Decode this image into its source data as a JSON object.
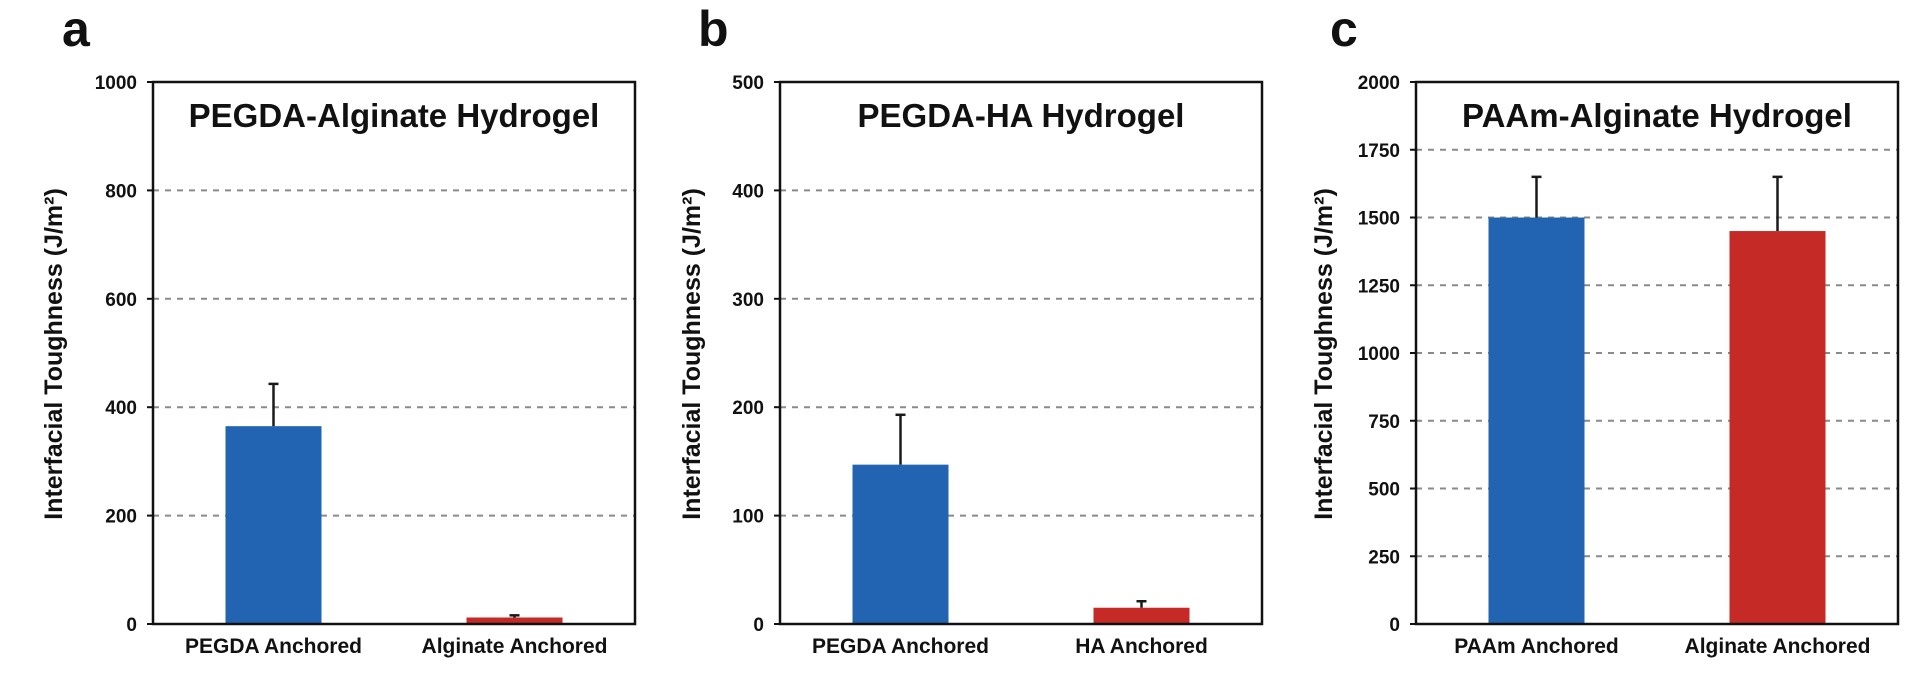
{
  "panels": [
    {
      "letter": "a"
    },
    {
      "letter": "b"
    },
    {
      "letter": "c"
    }
  ],
  "chart_data": [
    {
      "type": "bar",
      "title": "PEGDA-Alginate Hydrogel",
      "xlabel": "",
      "ylabel": "Interfacial Toughness (J/m²)",
      "categories": [
        "PEGDA Anchored",
        "Alginate Anchored"
      ],
      "values": [
        365,
        12
      ],
      "errors": [
        78,
        4
      ],
      "colors": [
        "#2364b2",
        "#c62a27"
      ],
      "ylim": [
        0,
        1000
      ],
      "yticks": [
        0,
        200,
        400,
        600,
        800,
        1000
      ],
      "grid": true,
      "legend": "none"
    },
    {
      "type": "bar",
      "title": "PEGDA-HA Hydrogel",
      "xlabel": "",
      "ylabel": "Interfacial Toughness (J/m²)",
      "categories": [
        "PEGDA Anchored",
        "HA Anchored"
      ],
      "values": [
        147,
        15
      ],
      "errors": [
        46,
        6
      ],
      "colors": [
        "#2364b2",
        "#c62a27"
      ],
      "ylim": [
        0,
        500
      ],
      "yticks": [
        0,
        100,
        200,
        300,
        400,
        500
      ],
      "grid": true,
      "legend": "none"
    },
    {
      "type": "bar",
      "title": "PAAm-Alginate Hydrogel",
      "xlabel": "",
      "ylabel": "Interfacial Toughness (J/m²)",
      "categories": [
        "PAAm Anchored",
        "Alginate Anchored"
      ],
      "values": [
        1500,
        1450
      ],
      "errors": [
        150,
        200
      ],
      "colors": [
        "#2364b2",
        "#c62a27"
      ],
      "ylim": [
        0,
        2000
      ],
      "yticks": [
        0,
        250,
        500,
        750,
        1000,
        1250,
        1500,
        1750,
        2000
      ],
      "grid": true,
      "legend": "none"
    }
  ]
}
